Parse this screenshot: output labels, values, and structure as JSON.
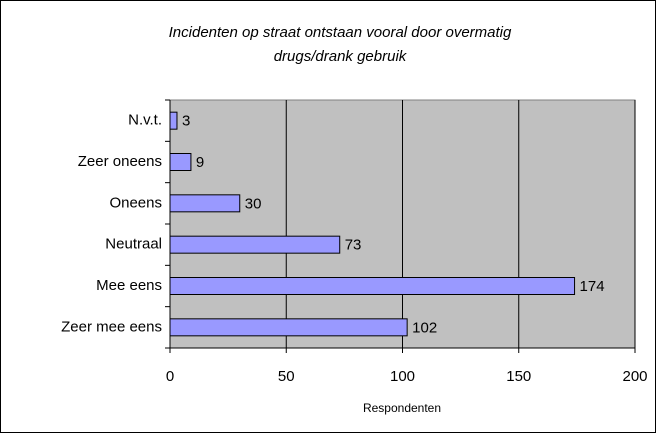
{
  "chart_data": {
    "type": "bar",
    "orientation": "horizontal",
    "title": [
      "Incidenten op straat ontstaan vooral door overmatig",
      "drugs/drank gebruik"
    ],
    "categories": [
      "N.v.t.",
      "Zeer oneens",
      "Oneens",
      "Neutraal",
      "Mee eens",
      "Zeer mee eens"
    ],
    "values": [
      3,
      9,
      30,
      73,
      174,
      102
    ],
    "color": "#9999ff",
    "xlabel": "Respondenten",
    "xlim": [
      0,
      200
    ],
    "xticks": [
      0,
      50,
      100,
      150,
      200
    ],
    "grid": true
  }
}
